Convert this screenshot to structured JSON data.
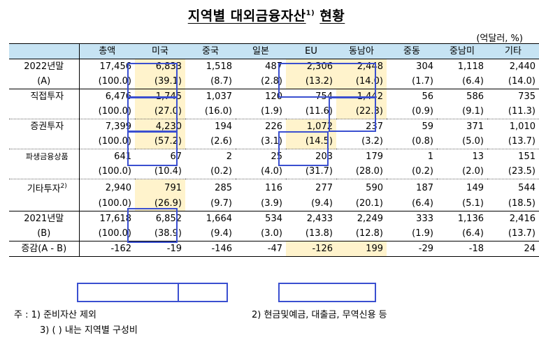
{
  "title": "지역별 대외금융자산",
  "title_sup": "1)",
  "title_suffix": "현황",
  "unit": "(억달러, %)",
  "columns": [
    "총액",
    "미국",
    "중국",
    "일본",
    "EU",
    "동남아",
    "중동",
    "중남미",
    "기타"
  ],
  "rows": [
    {
      "label": "2022년말",
      "values": [
        "17,456",
        "6,833",
        "1,518",
        "487",
        "2,306",
        "2,448",
        "304",
        "1,118",
        "2,440"
      ]
    },
    {
      "label": "(A)",
      "values": [
        "(100.0)",
        "(39.1)",
        "(8.7)",
        "(2.8)",
        "(13.2)",
        "(14.0)",
        "(1.7)",
        "(6.4)",
        "(14.0)"
      ]
    },
    {
      "label": "직접투자",
      "values": [
        "6,476",
        "1,745",
        "1,037",
        "120",
        "754",
        "1,442",
        "56",
        "586",
        "735"
      ]
    },
    {
      "label": "",
      "values": [
        "(100.0)",
        "(27.0)",
        "(16.0)",
        "(1.9)",
        "(11.6)",
        "(22.3)",
        "(0.9)",
        "(9.1)",
        "(11.3)"
      ]
    },
    {
      "label": "증권투자",
      "values": [
        "7,399",
        "4,230",
        "194",
        "226",
        "1,072",
        "237",
        "59",
        "371",
        "1,010"
      ]
    },
    {
      "label": "",
      "values": [
        "(100.0)",
        "(57.2)",
        "(2.6)",
        "(3.1)",
        "(14.5)",
        "(3.2)",
        "(0.8)",
        "(5.0)",
        "(13.7)"
      ]
    },
    {
      "label": "파생금융상품",
      "values": [
        "641",
        "67",
        "2",
        "25",
        "203",
        "179",
        "1",
        "13",
        "151"
      ]
    },
    {
      "label": "",
      "values": [
        "(100.0)",
        "(10.4)",
        "(0.2)",
        "(4.0)",
        "(31.7)",
        "(28.0)",
        "(0.2)",
        "(2.0)",
        "(23.5)"
      ]
    },
    {
      "label": "기타투자",
      "label_sup": "2)",
      "values": [
        "2,940",
        "791",
        "285",
        "116",
        "277",
        "590",
        "187",
        "149",
        "544"
      ]
    },
    {
      "label": "",
      "values": [
        "(100.0)",
        "(26.9)",
        "(9.7)",
        "(3.9)",
        "(9.4)",
        "(20.1)",
        "(6.4)",
        "(5.1)",
        "(18.5)"
      ]
    },
    {
      "label": "2021년말",
      "values": [
        "17,618",
        "6,852",
        "1,664",
        "534",
        "2,433",
        "2,249",
        "333",
        "1,136",
        "2,416"
      ]
    },
    {
      "label": "(B)",
      "values": [
        "(100.0)",
        "(38.9)",
        "(9.4)",
        "(3.0)",
        "(13.8)",
        "(12.8)",
        "(1.9)",
        "(6.4)",
        "(13.7)"
      ]
    },
    {
      "label": "증감(A - B)",
      "values": [
        "-162",
        "-19",
        "-146",
        "-47",
        "-126",
        "199",
        "-29",
        "-18",
        "24"
      ]
    }
  ],
  "notes": {
    "n1": "주 : 1) 준비자산 제외",
    "n2": "2) 현금및예금, 대출금, 무역신용 등",
    "n3": "3) ( ) 내는 지역별 구성비"
  },
  "colors": {
    "header_bg": "#c6e3f3",
    "highlight_bg": "#fff3cc",
    "box_border": "#3a4fd0"
  }
}
